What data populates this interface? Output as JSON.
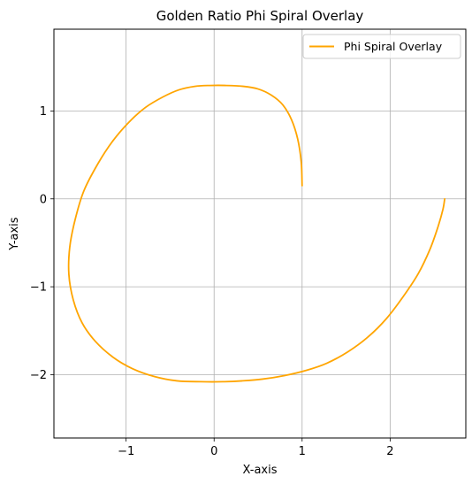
{
  "chart_data": {
    "type": "line",
    "title": "Golden Ratio Phi Spiral Overlay",
    "xlabel": "X-axis",
    "ylabel": "Y-axis",
    "xlim": [
      -1.82,
      2.86
    ],
    "ylim": [
      -2.72,
      1.93
    ],
    "xticks": [
      -1,
      0,
      1,
      2
    ],
    "xtick_labels": [
      "−1",
      "0",
      "1",
      "2"
    ],
    "yticks": [
      -2,
      -1,
      0,
      1
    ],
    "ytick_labels": [
      "−2",
      "−1",
      "0",
      "1"
    ],
    "grid": true,
    "legend_position": "top-right",
    "series": [
      {
        "name": "Phi Spiral Overlay",
        "color": "#FFA500",
        "x": [
          1.0,
          0.99,
          0.95,
          0.88,
          0.78,
          0.65,
          0.5,
          0.33,
          0.14,
          -0.05,
          -0.22,
          -0.4,
          -0.58,
          -0.78,
          -0.97,
          -1.15,
          -1.32,
          -1.48,
          -1.58,
          -1.64,
          -1.65,
          -1.6,
          -1.5,
          -1.35,
          -1.15,
          -0.93,
          -0.68,
          -0.42,
          -0.15,
          0.1,
          0.32,
          0.55,
          0.8,
          1.05,
          1.28,
          1.52,
          1.75,
          1.96,
          2.15,
          2.32,
          2.45,
          2.54,
          2.6,
          2.62
        ],
        "y": [
          0.15,
          0.42,
          0.68,
          0.9,
          1.07,
          1.18,
          1.25,
          1.28,
          1.29,
          1.29,
          1.28,
          1.24,
          1.16,
          1.04,
          0.87,
          0.66,
          0.4,
          0.09,
          -0.24,
          -0.55,
          -0.86,
          -1.15,
          -1.41,
          -1.62,
          -1.8,
          -1.93,
          -2.02,
          -2.07,
          -2.08,
          -2.08,
          -2.07,
          -2.05,
          -2.01,
          -1.95,
          -1.87,
          -1.74,
          -1.57,
          -1.36,
          -1.11,
          -0.85,
          -0.58,
          -0.33,
          -0.12,
          0.0
        ]
      }
    ]
  }
}
